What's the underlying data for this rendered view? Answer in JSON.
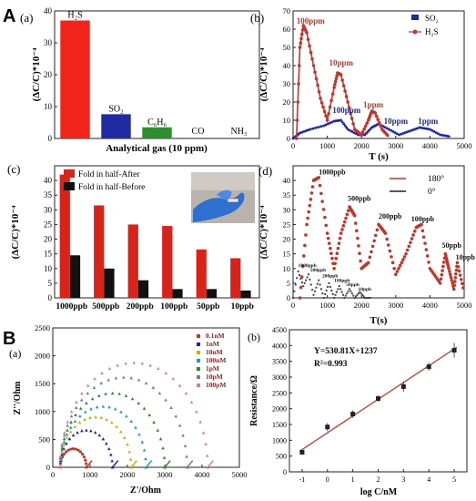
{
  "sections": {
    "A": "A",
    "B": "B"
  },
  "panels": {
    "a1": {
      "label": "(a)"
    },
    "b1": {
      "label": "(b)"
    },
    "c1": {
      "label": "(c)"
    },
    "d1": {
      "label": "(d)"
    },
    "a2": {
      "label": "(a)"
    },
    "b2": {
      "label": "(b)"
    }
  },
  "colors": {
    "red": "#e8221b",
    "darkred": "#c0362c",
    "blue": "#1e24a6",
    "green": "#2e8b2e",
    "black": "#111111"
  },
  "chart_data": [
    {
      "id": "a1",
      "type": "bar",
      "categories": [
        "H2S",
        "SO2",
        "C6H6",
        "CO",
        "NH3"
      ],
      "values": [
        37,
        7.6,
        3.5,
        0,
        0
      ],
      "ylabel": "(ΔC/C)*10⁻⁴",
      "xlabel": "Analytical gas (10 ppm)",
      "ylim": [
        0,
        40
      ],
      "yticks": [
        0,
        10,
        20,
        30,
        40
      ],
      "bar_labels": [
        "H₂S",
        "SO₂",
        "C₆H₆",
        "CO",
        "NH₃"
      ],
      "bar_colors": [
        "#f2231b",
        "#1f2aa3",
        "#2f8f2f",
        "#ffffff",
        "#ffffff"
      ]
    },
    {
      "id": "b1",
      "type": "line",
      "xlabel": "T (s)",
      "ylabel": "(ΔC/C)*10⁻⁴",
      "xlim": [
        0,
        5000
      ],
      "ylim": [
        0,
        70
      ],
      "xticks": [
        0,
        500,
        1000,
        1500,
        2000,
        2500,
        3000,
        3500,
        4000,
        4500,
        5000
      ],
      "yticks": [
        0,
        10,
        20,
        30,
        40,
        50,
        60,
        70
      ],
      "legend": [
        "SO₂",
        "H₂S"
      ],
      "series": [
        {
          "name": "SO₂",
          "color": "#1e24a6",
          "x": [
            0,
            200,
            500,
            900,
            1200,
            1400,
            1600,
            1900,
            2100,
            2300,
            2500,
            2800,
            3100,
            3400,
            3700,
            4000,
            4300,
            4600
          ],
          "y": [
            0,
            3,
            5,
            7,
            9.5,
            10,
            5,
            2,
            2,
            6,
            8,
            5,
            2,
            4,
            6,
            5,
            2,
            1
          ]
        },
        {
          "name": "H₂S",
          "color": "#c0362c",
          "x": [
            100,
            200,
            300,
            400,
            600,
            800,
            1000,
            1200,
            1300,
            1400,
            1600,
            1800,
            2000,
            2200,
            2300,
            2400,
            2600,
            2800
          ],
          "y": [
            0,
            50,
            62,
            58,
            40,
            22,
            10,
            28,
            36,
            35,
            20,
            5,
            2,
            10,
            15,
            14,
            5,
            1
          ]
        }
      ],
      "annotations": [
        {
          "text": "100ppm",
          "color": "#c0362c",
          "x": 100,
          "y": 63
        },
        {
          "text": "10ppm",
          "color": "#c0362c",
          "x": 1050,
          "y": 40
        },
        {
          "text": "1ppm",
          "color": "#c0362c",
          "x": 2050,
          "y": 17
        },
        {
          "text": "100ppm",
          "color": "#1e24a6",
          "x": 1150,
          "y": 14
        },
        {
          "text": "10ppm",
          "color": "#1e24a6",
          "x": 2650,
          "y": 8
        },
        {
          "text": "1ppm",
          "color": "#1e24a6",
          "x": 3650,
          "y": 8
        }
      ]
    },
    {
      "id": "c1",
      "type": "bar",
      "categories": [
        "1000ppb",
        "500ppb",
        "200ppb",
        "100ppb",
        "50ppb",
        "10ppb"
      ],
      "ylabel": "(ΔC/C)*10⁻⁴",
      "ylim": [
        0,
        45
      ],
      "yticks": [
        0,
        5,
        10,
        15,
        20,
        25,
        30,
        35,
        40
      ],
      "legend": [
        "Fold in half-After",
        "Fold in half-Before"
      ],
      "series": [
        {
          "name": "Fold in half-After",
          "color": "#d8231b",
          "values": [
            42,
            31.5,
            25,
            24.5,
            16.5,
            13.5
          ]
        },
        {
          "name": "Fold in half-Before",
          "color": "#111111",
          "values": [
            14.5,
            10,
            6,
            3,
            3,
            2.5
          ]
        }
      ]
    },
    {
      "id": "d1",
      "type": "scatter",
      "xlabel": "T(s)",
      "ylabel": "(ΔC/C)*10⁻⁴",
      "xlim": [
        0,
        5000
      ],
      "ylim": [
        0,
        45
      ],
      "xticks": [
        0,
        500,
        1000,
        1500,
        2000,
        2500,
        3000,
        3500,
        4000,
        4500,
        5000
      ],
      "yticks": [
        0,
        5,
        10,
        15,
        20,
        25,
        30,
        35,
        40
      ],
      "legend": [
        "180°",
        "0°"
      ],
      "series": [
        {
          "name": "180°",
          "color": "#c0362c",
          "x": [
            200,
            400,
            600,
            750,
            1000,
            1200,
            1400,
            1650,
            1800,
            2000,
            2200,
            2500,
            2700,
            3000,
            3300,
            3600,
            3750,
            4000,
            4300,
            4450,
            4550,
            4700,
            4800,
            5000
          ],
          "y": [
            0,
            25,
            40,
            41,
            22,
            10,
            22,
            31,
            28,
            10,
            12,
            25,
            22,
            8,
            15,
            24,
            25,
            10,
            5,
            15,
            10,
            3,
            12,
            2
          ]
        },
        {
          "name": "0°",
          "color": "#444444",
          "x": [
            0,
            150,
            300,
            450,
            600,
            750,
            900,
            1050,
            1200,
            1350,
            1500,
            1650,
            1800,
            1950,
            2100,
            2300
          ],
          "y": [
            0,
            9,
            4,
            8,
            1,
            6,
            0,
            5,
            0,
            4,
            0,
            3,
            0,
            2,
            0,
            0
          ]
        }
      ],
      "annotations": [
        {
          "text": "1000ppb",
          "color": "#111111",
          "x": 750,
          "y": 42
        },
        {
          "text": "500ppb",
          "color": "#111111",
          "x": 1600,
          "y": 33
        },
        {
          "text": "200ppb",
          "color": "#111111",
          "x": 2500,
          "y": 27
        },
        {
          "text": "100ppb",
          "color": "#111111",
          "x": 3450,
          "y": 26
        },
        {
          "text": "50ppb",
          "color": "#111111",
          "x": 4350,
          "y": 17
        },
        {
          "text": "10ppb",
          "color": "#111111",
          "x": 4750,
          "y": 13
        },
        {
          "text": "1000ppb",
          "color": "#111111",
          "x": 150,
          "y": 10.5
        },
        {
          "text": "500ppb",
          "color": "#111111",
          "x": 500,
          "y": 9
        },
        {
          "text": "200ppb",
          "color": "#111111",
          "x": 850,
          "y": 7
        },
        {
          "text": "100ppb",
          "color": "#111111",
          "x": 1200,
          "y": 5.5
        },
        {
          "text": "50ppb",
          "color": "#111111",
          "x": 1550,
          "y": 4
        },
        {
          "text": "10ppb",
          "color": "#111111",
          "x": 1900,
          "y": 2.5
        }
      ]
    },
    {
      "id": "a2",
      "type": "scatter",
      "xlabel": "Z'/Ohm",
      "ylabel": "Z''/Ohm",
      "xlim": [
        0,
        5000
      ],
      "ylim": [
        0,
        2500
      ],
      "xticks": [
        0,
        1000,
        2000,
        3000,
        4000,
        5000
      ],
      "yticks": [
        0,
        500,
        1000,
        1500,
        2000,
        2500
      ],
      "series": [
        {
          "name": "0.1nM",
          "color": "#c0362c",
          "x0": 200,
          "x1": 900
        },
        {
          "name": "1nM",
          "color": "#1e24a6",
          "x0": 200,
          "x1": 1600
        },
        {
          "name": "10nM",
          "color": "#e0a800",
          "x0": 200,
          "x1": 2100
        },
        {
          "name": "100nM",
          "color": "#1aa5a5",
          "x0": 200,
          "x1": 2500
        },
        {
          "name": "1pM",
          "color": "#2e8b2e",
          "x0": 200,
          "x1": 3000
        },
        {
          "name": "10pM",
          "color": "#7a7aa0",
          "x0": 200,
          "x1": 3600
        },
        {
          "name": "100pM",
          "color": "#d4887a",
          "x0": 200,
          "x1": 4150
        }
      ]
    },
    {
      "id": "b2",
      "type": "scatter",
      "xlabel": "log C/nM",
      "ylabel": "Resistance/Ω",
      "xlim": [
        -1.5,
        5.5
      ],
      "ylim": [
        0,
        4500
      ],
      "xticks": [
        -1,
        0,
        1,
        2,
        3,
        4,
        5
      ],
      "yticks": [
        0,
        500,
        1000,
        1500,
        2000,
        2500,
        3000,
        3500,
        4000,
        4500
      ],
      "x": [
        -1,
        0,
        1,
        2,
        3,
        4,
        5
      ],
      "y": [
        620,
        1420,
        1830,
        2320,
        2700,
        3330,
        3850
      ],
      "err": [
        80,
        130,
        120,
        100,
        160,
        130,
        230
      ],
      "fit": {
        "slope": 530.81,
        "intercept": 1237
      },
      "equation": "Y=530.81X+1237",
      "r2": "R²=0.993"
    }
  ]
}
